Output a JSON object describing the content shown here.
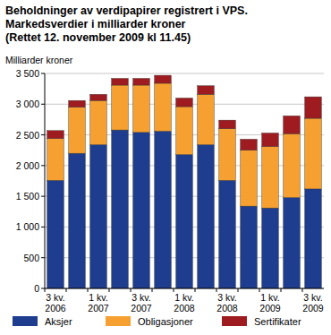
{
  "chart_data": {
    "type": "bar",
    "title": "Beholdninger av verdipapirer registrert i VPS.",
    "subtitle": [
      "Markedsverdier i milliarder kroner",
      "(Rettet 12. november 2009 kl 11.45)"
    ],
    "y_label": "Milliarder kroner",
    "categories": [
      "3 kv. 2006",
      null,
      "1 kv. 2007",
      null,
      "3 kv. 2007",
      null,
      "1 kv. 2008",
      null,
      "3 kv. 2008",
      null,
      "1 kv. 2009",
      null,
      "3 kv. 2009"
    ],
    "series": [
      {
        "name": "Aksjer",
        "color": "#1f3d8f",
        "values": [
          1760,
          2200,
          2340,
          2580,
          2540,
          2560,
          2180,
          2340,
          1760,
          1340,
          1310,
          1480,
          1620
        ]
      },
      {
        "name": "Obligasjoner",
        "color": "#f5a030",
        "values": [
          680,
          750,
          720,
          730,
          770,
          780,
          780,
          820,
          840,
          910,
          1000,
          1040,
          1150
        ]
      },
      {
        "name": "Sertifikater",
        "color": "#9e1b20",
        "values": [
          130,
          110,
          100,
          110,
          110,
          130,
          140,
          140,
          140,
          180,
          220,
          290,
          350
        ]
      }
    ],
    "ylim": [
      0,
      3500
    ],
    "yticks": [
      0,
      500,
      {
        "value": 1000,
        "label": "1 000"
      },
      {
        "value": 1500,
        "label": "1 500"
      },
      {
        "value": 2000,
        "label": "2 000"
      },
      {
        "value": 2500,
        "label": "2 500"
      },
      {
        "value": 3000,
        "label": "3 000"
      },
      {
        "value": 3500,
        "label": "3 500"
      }
    ],
    "stacked": true,
    "grid": true,
    "legend": "bottom"
  }
}
